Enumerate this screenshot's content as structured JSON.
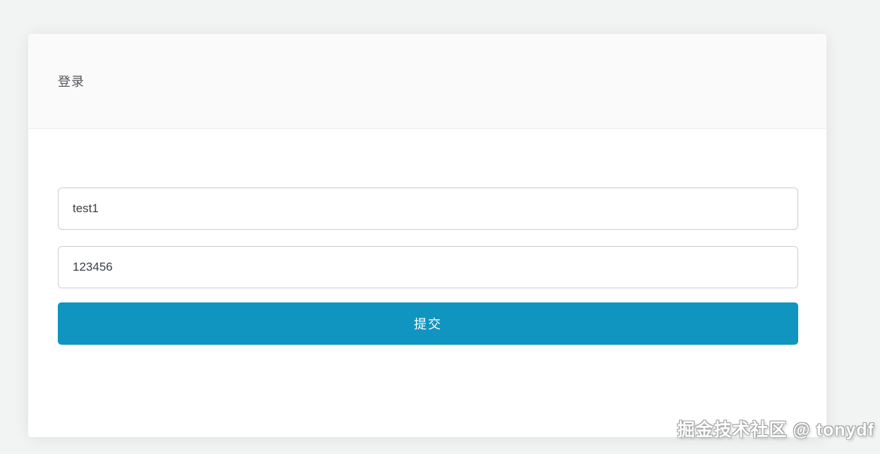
{
  "card": {
    "header": {
      "title": "登录"
    },
    "form": {
      "username": {
        "value": "test1"
      },
      "password": {
        "value": "123456"
      },
      "submit_label": "提交"
    }
  },
  "watermark": {
    "text": "掘金技术社区 @ tonydf"
  },
  "colors": {
    "primary": "#1095c0",
    "page_bg": "#f2f3f3",
    "header_bg": "#fafafa",
    "header_border": "#ededed",
    "input_border": "#c9cdd1"
  }
}
